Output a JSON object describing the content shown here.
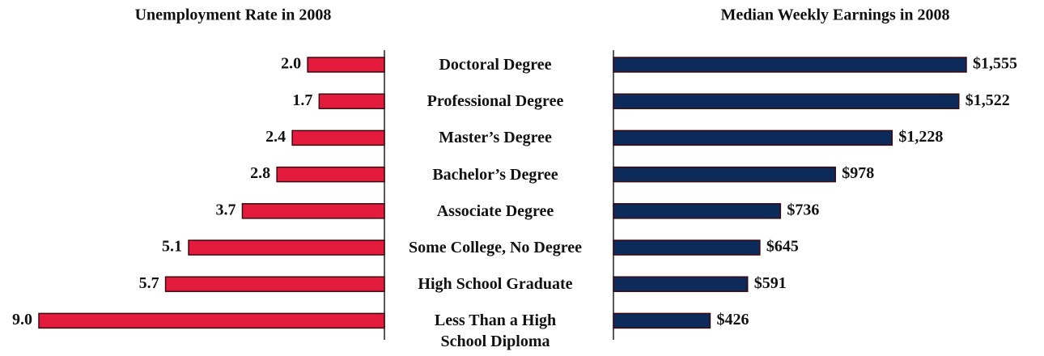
{
  "chart_data": {
    "type": "bar",
    "orientation": "horizontal",
    "categories": [
      "Doctoral Degree",
      "Professional Degree",
      "Master’s Degree",
      "Bachelor’s Degree",
      "Associate Degree",
      "Some College, No Degree",
      "High School Graduate",
      "Less Than a High School Diploma"
    ],
    "series": [
      {
        "name": "Unemployment Rate in 2008",
        "color": "#e31c3d",
        "values": [
          2.0,
          1.7,
          2.4,
          2.8,
          3.7,
          5.1,
          5.7,
          9.0
        ],
        "value_labels": [
          "2.0",
          "1.7",
          "2.4",
          "2.8",
          "3.7",
          "5.1",
          "5.7",
          "9.0"
        ]
      },
      {
        "name": "Median Weekly Earnings in 2008",
        "color": "#0c2a5a",
        "values": [
          1555,
          1522,
          1228,
          978,
          736,
          645,
          591,
          426
        ],
        "value_labels": [
          "$1,555",
          "$1,522",
          "$1,228",
          "$978",
          "$736",
          "$645",
          "$591",
          "$426"
        ]
      }
    ]
  }
}
